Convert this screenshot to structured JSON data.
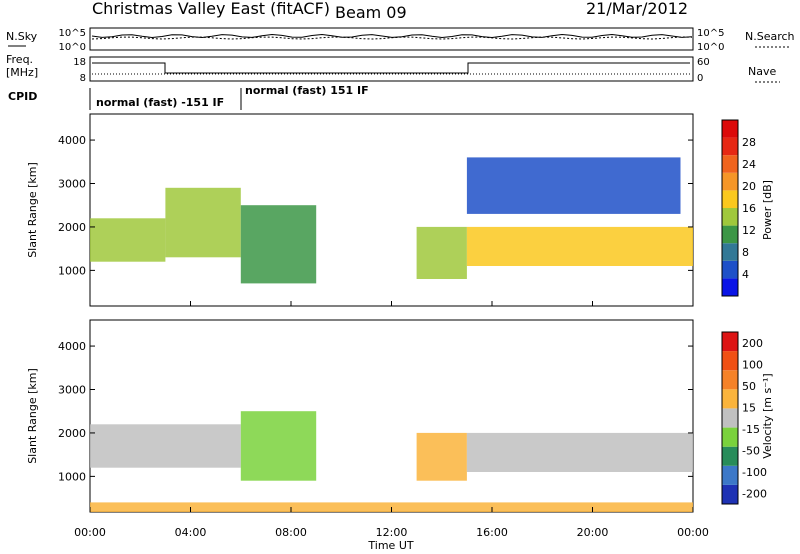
{
  "header": {
    "station": "Christmas Valley East (fitACF)",
    "beam": "Beam 09",
    "date": "21/Mar/2012"
  },
  "left_labels": {
    "nsky": "N.Sky",
    "freq_line1": "Freq.",
    "freq_line2": "[MHz]",
    "cpid": "CPID"
  },
  "right_labels": {
    "nsearch": "N.Search",
    "nave": "Nave"
  },
  "noise_axis_ticks": {
    "left": [
      "10^5",
      "10^0"
    ],
    "right": [
      "10^5",
      "10^0"
    ]
  },
  "freq_axis_ticks": {
    "left": [
      "18",
      "8"
    ],
    "right": [
      "60",
      "0"
    ]
  },
  "cpid_programs": [
    {
      "label": "normal (fast) -151 IF",
      "start_ut": 0,
      "end_ut": 6
    },
    {
      "label": "normal (fast) 151 IF",
      "start_ut": 6,
      "end_ut": 24
    }
  ],
  "xaxis": {
    "label": "Time UT",
    "ticks": [
      "00:00",
      "04:00",
      "08:00",
      "12:00",
      "16:00",
      "20:00",
      "00:00"
    ]
  },
  "chart_data": [
    {
      "type": "heatmap",
      "name": "Power",
      "ylabel": "Slant Range [km]",
      "xlim": [
        0,
        24
      ],
      "ylim": [
        180,
        4600
      ],
      "yticks": [
        1000,
        2000,
        3000,
        4000
      ],
      "colorbar": {
        "label": "Power [dB]",
        "ticks": [
          "4",
          "8",
          "12",
          "16",
          "20",
          "24",
          "28"
        ],
        "colors": [
          "#0a14e6",
          "#1e50c8",
          "#327896",
          "#3c9646",
          "#a0c83c",
          "#fac81e",
          "#f59628",
          "#f0641e",
          "#e62814",
          "#dc0a0a"
        ],
        "range": [
          0,
          30
        ]
      },
      "regions": [
        {
          "t0": 0.0,
          "t1": 3.0,
          "r0": 1200,
          "r1": 2200,
          "value": 14
        },
        {
          "t0": 3.0,
          "t1": 6.0,
          "r0": 1300,
          "r1": 2900,
          "value": 12
        },
        {
          "t0": 6.0,
          "t1": 9.0,
          "r0": 700,
          "r1": 2500,
          "value": 10
        },
        {
          "t0": 13.0,
          "t1": 15.0,
          "r0": 800,
          "r1": 2000,
          "value": 12
        },
        {
          "t0": 15.0,
          "t1": 24.0,
          "r0": 1100,
          "r1": 2000,
          "value": 16
        },
        {
          "t0": 15.0,
          "t1": 23.5,
          "r0": 2300,
          "r1": 3600,
          "value": 5
        }
      ]
    },
    {
      "type": "heatmap",
      "name": "Velocity",
      "ylabel": "Slant Range [km]",
      "xlim": [
        0,
        24
      ],
      "ylim": [
        180,
        4600
      ],
      "yticks": [
        1000,
        2000,
        3000,
        4000
      ],
      "colorbar": {
        "label": "Velocity [m s⁻¹]",
        "ticks": [
          "200",
          "100",
          "50",
          "15",
          "-15",
          "-50",
          "-100",
          "-200"
        ],
        "colors": [
          "#1e32b4",
          "#3c78c8",
          "#288c5a",
          "#7ad23c",
          "#c0c0c0",
          "#fab43c",
          "#f58228",
          "#f05014",
          "#dc1414"
        ],
        "range": [
          -250,
          250
        ]
      },
      "regions": [
        {
          "t0": 0.0,
          "t1": 6.0,
          "r0": 1200,
          "r1": 2200,
          "value": 0
        },
        {
          "t0": 6.0,
          "t1": 9.0,
          "r0": 900,
          "r1": 2500,
          "value": -60
        },
        {
          "t0": 13.0,
          "t1": 15.0,
          "r0": 900,
          "r1": 2000,
          "value": 40
        },
        {
          "t0": 15.0,
          "t1": 24.0,
          "r0": 1100,
          "r1": 2000,
          "value": 0
        },
        {
          "t0": 0.0,
          "t1": 24.0,
          "r0": 180,
          "r1": 400,
          "value": 30
        }
      ]
    }
  ]
}
